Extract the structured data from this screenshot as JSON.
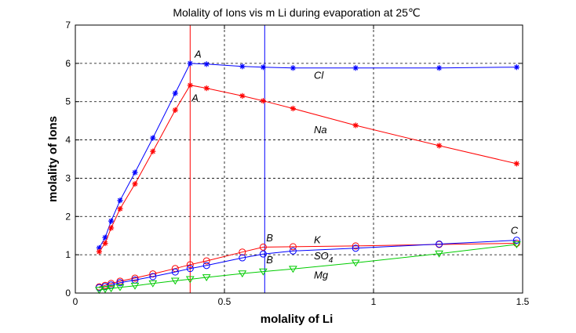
{
  "chart_data": {
    "type": "line",
    "title": "Molality of Ions vis m Li during evaporation at 25℃",
    "xlabel": "molality of Li",
    "ylabel": "molality of Ions",
    "xlim": [
      0,
      1.5
    ],
    "ylim": [
      0,
      7
    ],
    "xticks": [
      0,
      0.5,
      1,
      1.5
    ],
    "xtick_labels": [
      "0",
      "0.5",
      "1",
      "1.5"
    ],
    "yticks": [
      0,
      1,
      2,
      3,
      4,
      5,
      6,
      7
    ],
    "ytick_labels": [
      "0",
      "1",
      "2",
      "3",
      "4",
      "5",
      "6",
      "7"
    ],
    "grid": true,
    "vertical_lines": [
      {
        "x": 0.385,
        "color": "#ff0000"
      },
      {
        "x": 0.635,
        "color": "#0000ff"
      }
    ],
    "series": [
      {
        "name": "Cl",
        "color": "#0000ff",
        "marker": "star",
        "x": [
          0.08,
          0.1,
          0.12,
          0.15,
          0.2,
          0.26,
          0.335,
          0.385,
          0.44,
          0.56,
          0.63,
          0.73,
          0.94,
          1.22,
          1.48
        ],
        "y": [
          1.18,
          1.45,
          1.88,
          2.42,
          3.15,
          4.05,
          5.22,
          6.0,
          5.98,
          5.92,
          5.9,
          5.88,
          5.88,
          5.88,
          5.9
        ]
      },
      {
        "name": "Na",
        "color": "#ff0000",
        "marker": "star",
        "x": [
          0.08,
          0.1,
          0.12,
          0.15,
          0.2,
          0.26,
          0.335,
          0.385,
          0.44,
          0.56,
          0.63,
          0.73,
          0.94,
          1.22,
          1.48
        ],
        "y": [
          1.08,
          1.3,
          1.7,
          2.2,
          2.85,
          3.7,
          4.78,
          5.43,
          5.35,
          5.15,
          5.02,
          4.82,
          4.38,
          3.85,
          3.38
        ]
      },
      {
        "name": "K",
        "color": "#ff0000",
        "marker": "circle",
        "x": [
          0.08,
          0.1,
          0.12,
          0.15,
          0.2,
          0.26,
          0.335,
          0.385,
          0.44,
          0.56,
          0.63,
          0.73,
          0.94,
          1.22,
          1.48
        ],
        "y": [
          0.16,
          0.2,
          0.25,
          0.31,
          0.39,
          0.5,
          0.64,
          0.74,
          0.84,
          1.07,
          1.2,
          1.21,
          1.23,
          1.27,
          1.3
        ]
      },
      {
        "name": "SO4",
        "color": "#0000ff",
        "marker": "circle",
        "x": [
          0.08,
          0.1,
          0.12,
          0.15,
          0.2,
          0.26,
          0.335,
          0.385,
          0.44,
          0.56,
          0.63,
          0.73,
          0.94,
          1.22,
          1.48
        ],
        "y": [
          0.14,
          0.17,
          0.21,
          0.27,
          0.34,
          0.43,
          0.55,
          0.64,
          0.72,
          0.92,
          1.02,
          1.1,
          1.17,
          1.28,
          1.38
        ]
      },
      {
        "name": "Mg",
        "color": "#00cc00",
        "marker": "triangle-down",
        "x": [
          0.08,
          0.1,
          0.12,
          0.15,
          0.2,
          0.26,
          0.335,
          0.385,
          0.44,
          0.56,
          0.63,
          0.73,
          0.94,
          1.22,
          1.48
        ],
        "y": [
          0.08,
          0.1,
          0.12,
          0.15,
          0.19,
          0.25,
          0.32,
          0.36,
          0.41,
          0.51,
          0.56,
          0.63,
          0.79,
          1.03,
          1.27
        ]
      }
    ],
    "series_labels": [
      {
        "text": "Cl",
        "x": 0.8,
        "y": 5.6
      },
      {
        "text": "Na",
        "x": 0.8,
        "y": 4.18
      },
      {
        "text": "K",
        "x": 0.8,
        "y": 1.3
      },
      {
        "text": "SO",
        "sub": "4",
        "x": 0.8,
        "y": 0.88
      },
      {
        "text": "Mg",
        "x": 0.8,
        "y": 0.38
      }
    ],
    "annotations": [
      {
        "text": "A",
        "x": 0.4,
        "y": 6.15
      },
      {
        "text": "A",
        "x": 0.39,
        "y": 5.0
      },
      {
        "text": "B",
        "x": 0.64,
        "y": 1.35
      },
      {
        "text": "B",
        "x": 0.64,
        "y": 0.78
      },
      {
        "text": "C",
        "x": 1.46,
        "y": 1.55
      }
    ]
  }
}
